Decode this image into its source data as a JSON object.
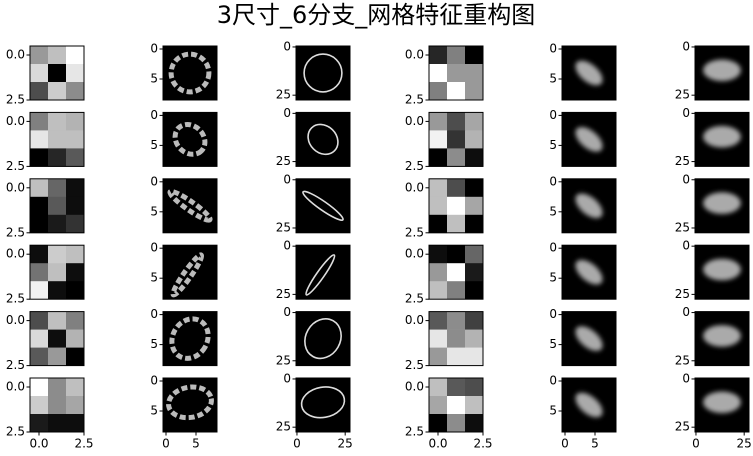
{
  "title": "3尺寸_6分支_网格特征重构图",
  "axes": [
    {
      "ytick_labels": [
        "0.0",
        "2.5"
      ],
      "xtick_labels": [
        "0.0",
        "2.5"
      ]
    },
    {
      "ytick_labels": [
        "0",
        "5"
      ],
      "xtick_labels": [
        "0",
        "5"
      ]
    },
    {
      "ytick_labels": [
        "0",
        "25"
      ],
      "xtick_labels": [
        "0",
        "25"
      ]
    },
    {
      "ytick_labels": [
        "0.0",
        "2.5"
      ],
      "xtick_labels": [
        "0.0",
        "2.5"
      ]
    },
    {
      "ytick_labels": [
        "0",
        "5"
      ],
      "xtick_labels": [
        "0",
        "5"
      ]
    },
    {
      "ytick_labels": [
        "0",
        "25"
      ],
      "xtick_labels": [
        "0",
        "25"
      ]
    }
  ],
  "rows": [
    {
      "grid_a": [
        [
          0.6,
          0.75,
          1
        ],
        [
          0.85,
          0,
          0.9
        ],
        [
          0.3,
          0.8,
          0.55
        ]
      ],
      "grid_b": [
        [
          0.15,
          0.5,
          0
        ],
        [
          1,
          0.6,
          0.6
        ],
        [
          0.5,
          1,
          0.6
        ]
      ]
    },
    {
      "grid_a": [
        [
          0.5,
          0.75,
          0.7
        ],
        [
          0.9,
          0.75,
          0.75
        ],
        [
          0,
          0.15,
          0.35
        ]
      ],
      "grid_b": [
        [
          0.6,
          0.3,
          0.65
        ],
        [
          0.95,
          0.2,
          0.7
        ],
        [
          0,
          0.55,
          0.05
        ]
      ]
    },
    {
      "grid_a": [
        [
          0.75,
          0.4,
          0.05
        ],
        [
          0,
          0.35,
          0.05
        ],
        [
          0,
          0.1,
          0.2
        ]
      ],
      "grid_b": [
        [
          0.75,
          0.3,
          0
        ],
        [
          0.75,
          1,
          0.65
        ],
        [
          0,
          0.75,
          0
        ]
      ]
    },
    {
      "grid_a": [
        [
          0.05,
          0.8,
          0.75
        ],
        [
          0.45,
          0.75,
          0.05
        ],
        [
          0.95,
          0.05,
          0
        ]
      ],
      "grid_b": [
        [
          0.05,
          0,
          0.4
        ],
        [
          0.6,
          1,
          0.1
        ],
        [
          0.75,
          0.5,
          0
        ]
      ]
    },
    {
      "grid_a": [
        [
          0.3,
          0.75,
          0.5
        ],
        [
          0.85,
          0.05,
          0.7
        ],
        [
          0.35,
          0.6,
          0
        ]
      ],
      "grid_b": [
        [
          0.35,
          0.55,
          0.25
        ],
        [
          0.9,
          0.55,
          0.7
        ],
        [
          0.6,
          0.9,
          0.9
        ]
      ]
    },
    {
      "grid_a": [
        [
          1,
          0.55,
          0.75
        ],
        [
          0.8,
          0.55,
          0.65
        ],
        [
          0.1,
          0.05,
          0.05
        ]
      ],
      "grid_b": [
        [
          0.75,
          0.35,
          0.3
        ],
        [
          0.65,
          1,
          0.75
        ],
        [
          0,
          0.55,
          0.05
        ]
      ]
    }
  ]
}
